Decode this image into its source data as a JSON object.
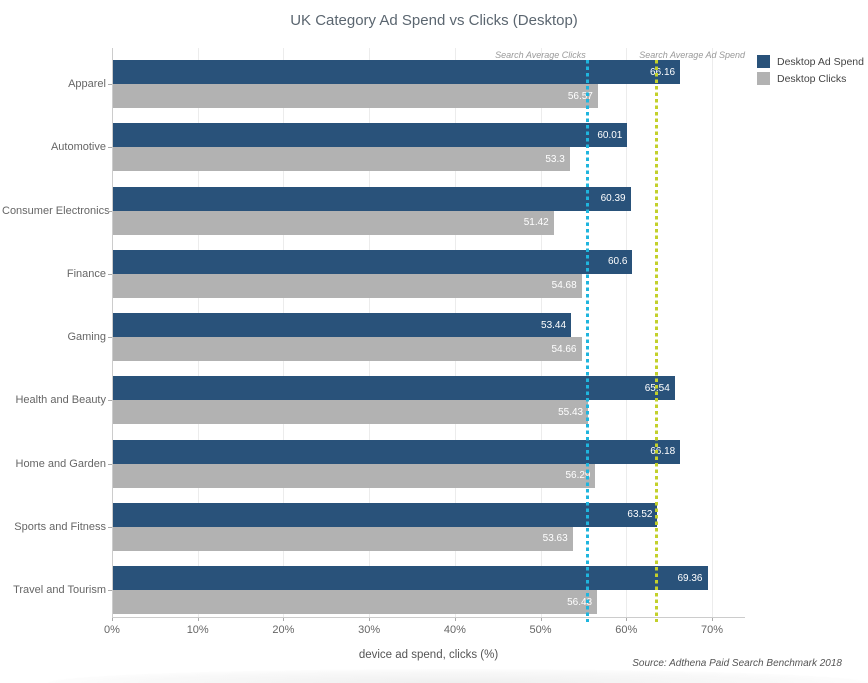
{
  "title": "UK Category Ad Spend vs Clicks (Desktop)",
  "source": "Source: Adthena Paid Search Benchmark 2018",
  "chart_data": {
    "type": "bar",
    "orientation": "horizontal",
    "title": "UK Category Ad Spend vs Clicks (Desktop)",
    "xlabel": "device ad spend, clicks (%)",
    "xlim": [
      0,
      70
    ],
    "x_ticks": [
      "0%",
      "10%",
      "20%",
      "30%",
      "40%",
      "50%",
      "60%",
      "70%"
    ],
    "grid": true,
    "legend_position": "top-right",
    "categories": [
      "Apparel",
      "Automotive",
      "Consumer Electronics",
      "Finance",
      "Gaming",
      "Health and Beauty",
      "Home and Garden",
      "Sports and Fitness",
      "Travel and Tourism"
    ],
    "series": [
      {
        "name": "Desktop Ad Spend",
        "color": "#29527A",
        "values": [
          66.16,
          60.01,
          60.39,
          60.6,
          53.44,
          65.54,
          66.18,
          63.52,
          69.36
        ]
      },
      {
        "name": "Desktop Clicks",
        "color": "#B2B2B2",
        "values": [
          56.57,
          53.3,
          51.42,
          54.68,
          54.66,
          55.43,
          56.29,
          53.63,
          56.48
        ]
      }
    ],
    "reference_lines": [
      {
        "label": "Search Average Clicks",
        "value": 55.5,
        "color": "#1FB5DE",
        "style": "dotted",
        "label_side": "left"
      },
      {
        "label": "Search Average Ad Spend",
        "value": 63.5,
        "color": "#C3D02B",
        "style": "dotted",
        "label_side": "right"
      }
    ]
  }
}
